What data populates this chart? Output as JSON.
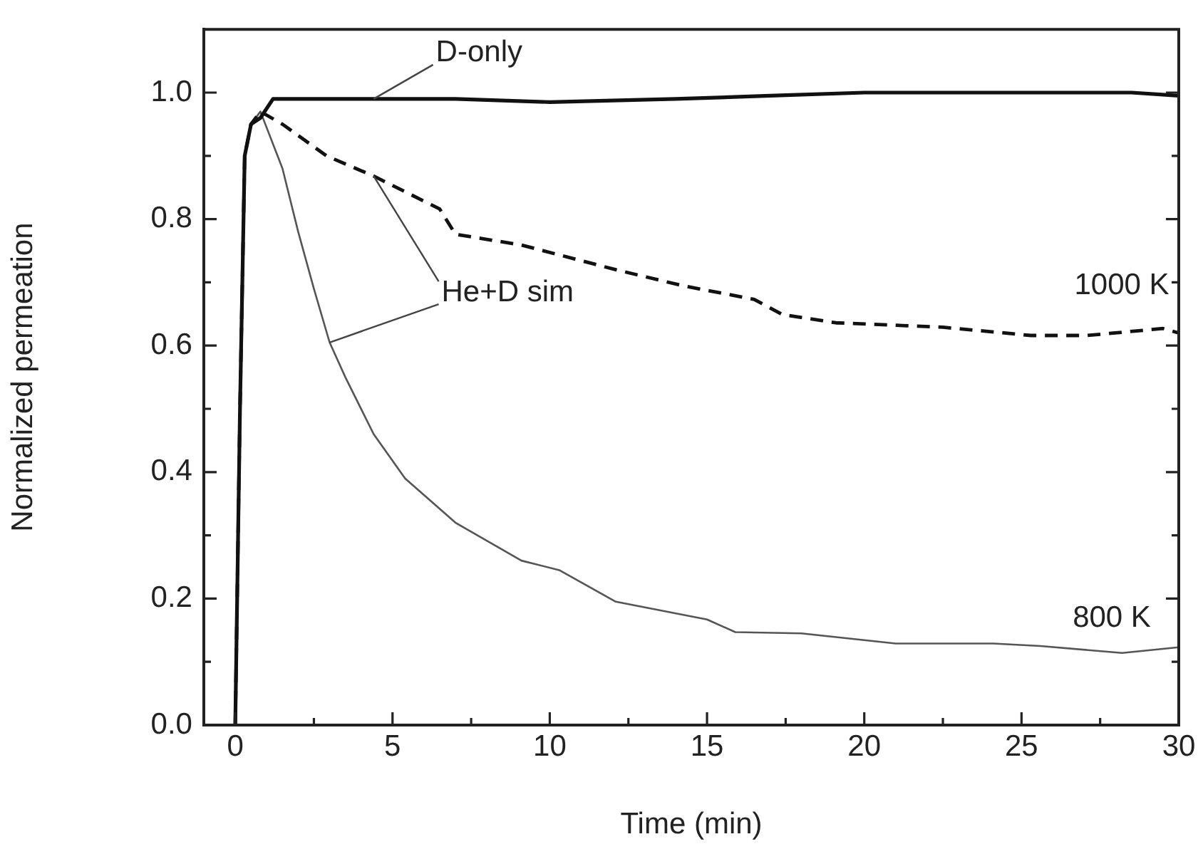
{
  "chart_data": {
    "type": "line",
    "xlabel": "Time (min)",
    "ylabel": "Normalized permeation",
    "xlim": [
      -1,
      30
    ],
    "ylim": [
      0,
      1.1
    ],
    "xticks": [
      0,
      {
        "value": 2.5,
        "label": null
      },
      5,
      {
        "value": 7.5,
        "label": null
      },
      10,
      {
        "value": 12.5,
        "label": null
      },
      15,
      {
        "value": 17.5,
        "label": null
      },
      20,
      {
        "value": 22.5,
        "label": null
      },
      25,
      {
        "value": 27.5,
        "label": null
      },
      30
    ],
    "yticks": [
      {
        "value": 0,
        "label": "0.0"
      },
      {
        "value": 0.1,
        "label": null
      },
      {
        "value": 0.2,
        "label": "0.2"
      },
      {
        "value": 0.3,
        "label": null
      },
      {
        "value": 0.4,
        "label": "0.4"
      },
      {
        "value": 0.5,
        "label": null
      },
      {
        "value": 0.6,
        "label": "0.6"
      },
      {
        "value": 0.7,
        "label": null
      },
      {
        "value": 0.8,
        "label": "0.8"
      },
      {
        "value": 0.9,
        "label": null
      },
      {
        "value": 1.0,
        "label": "1.0"
      }
    ],
    "marker": "none",
    "series": [
      {
        "name": "D-only",
        "color": "#111111",
        "x": [
          0,
          0.15,
          0.3,
          0.5,
          0.8,
          1.2,
          3,
          4.4,
          7,
          10,
          14,
          17,
          20,
          25,
          28.5,
          30
        ],
        "values": [
          0,
          0.5,
          0.9,
          0.95,
          0.96,
          0.99,
          0.99,
          0.99,
          0.99,
          0.985,
          0.99,
          0.995,
          1.0,
          1.0,
          1.0,
          0.995
        ]
      },
      {
        "name": "1000 K",
        "color": "#111111",
        "line_style": "dashed",
        "x": [
          0,
          0.15,
          0.3,
          0.5,
          0.8,
          1.5,
          2.9,
          4.4,
          6.5,
          7,
          9.1,
          12.1,
          14.2,
          16.5,
          17.4,
          19.1,
          22.5,
          25.3,
          27.1,
          29.5,
          30
        ],
        "values": [
          0,
          0.5,
          0.9,
          0.95,
          0.97,
          0.95,
          0.9,
          0.868,
          0.816,
          0.776,
          0.759,
          0.72,
          0.695,
          0.673,
          0.649,
          0.636,
          0.629,
          0.616,
          0.616,
          0.627,
          0.62
        ]
      },
      {
        "name": "800 K",
        "color": "#555555",
        "x": [
          0,
          0.15,
          0.3,
          0.5,
          0.8,
          1.5,
          2,
          2.5,
          3,
          3.5,
          4.4,
          5.4,
          7,
          9.1,
          10.3,
          12.1,
          15,
          15.9,
          18,
          21,
          24.1,
          25.6,
          28.2,
          30
        ],
        "values": [
          0,
          0.5,
          0.9,
          0.95,
          0.97,
          0.88,
          0.78,
          0.69,
          0.605,
          0.55,
          0.46,
          0.39,
          0.32,
          0.26,
          0.245,
          0.195,
          0.167,
          0.147,
          0.145,
          0.129,
          0.129,
          0.125,
          0.114,
          0.123
        ]
      }
    ],
    "annotations": [
      {
        "text": "He+D sim",
        "x": 4.4,
        "y": 0.868
      }
    ]
  }
}
